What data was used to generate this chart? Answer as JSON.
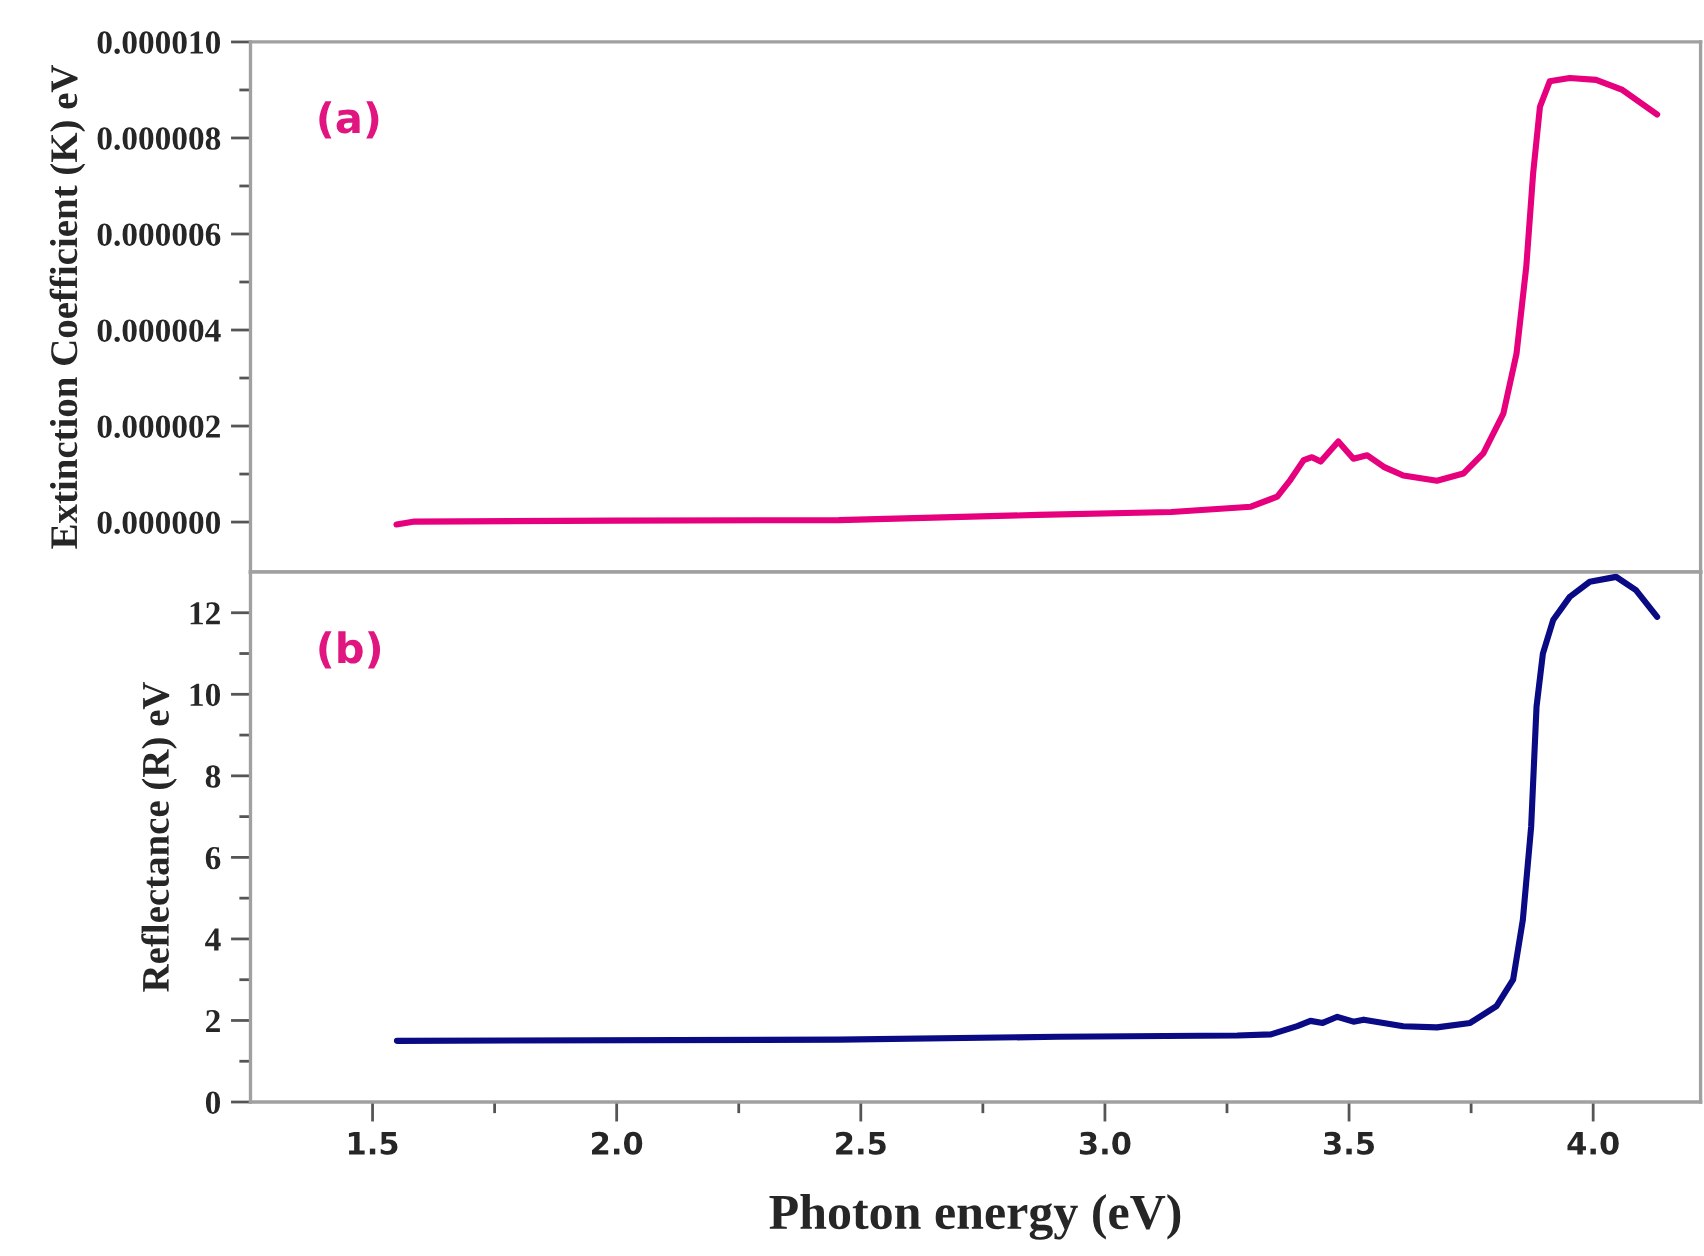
{
  "chart_data": [
    {
      "type": "line",
      "ylabel": "Extinction Coefficient (K) eV",
      "annotations": [
        "(a)"
      ],
      "xlim": [
        1.25,
        4.22
      ],
      "xticks": [
        1.5,
        {
          "value": 1.75,
          "label": null
        },
        2,
        {
          "value": 2.25,
          "label": null
        },
        2.5,
        {
          "value": 2.75,
          "label": null
        },
        3,
        {
          "value": 3.25,
          "label": null
        },
        3.5,
        {
          "value": 3.75,
          "label": null
        },
        4
      ],
      "ylim": [
        -1.04e-06,
        1e-05
      ],
      "yticks": [
        {
          "value": 0,
          "label": "0.000000"
        },
        {
          "value": 1e-06,
          "label": null
        },
        {
          "value": 2e-06,
          "label": "0.000002"
        },
        {
          "value": 3e-06,
          "label": null
        },
        {
          "value": 4e-06,
          "label": "0.000004"
        },
        {
          "value": 5e-06,
          "label": null
        },
        {
          "value": 6e-06,
          "label": "0.000006"
        },
        {
          "value": 7e-06,
          "label": null
        },
        {
          "value": 8e-06,
          "label": "0.000008"
        },
        {
          "value": 9e-06,
          "label": null
        },
        {
          "value": 1e-05,
          "label": "0.000010"
        }
      ],
      "tick_labels": "y",
      "grid": false,
      "legend": false,
      "marker": "none",
      "line_style": "solid",
      "series": [
        {
          "color": "#e6007e",
          "x": [
            1.549,
            1.586,
            2.0,
            2.455,
            2.863,
            3.136,
            3.299,
            3.353,
            3.38,
            3.407,
            3.424,
            3.442,
            3.478,
            3.509,
            3.537,
            3.571,
            3.611,
            3.68,
            3.734,
            3.775,
            3.816,
            3.843,
            3.863,
            3.877,
            3.891,
            3.911,
            3.952,
            4.006,
            4.06,
            4.131
          ],
          "values": [
            -5e-08,
            1e-08,
            3e-08,
            4e-08,
            1.5e-07,
            2.1e-07,
            3.2e-07,
            5.3e-07,
            8.8e-07,
            1.29e-06,
            1.35e-06,
            1.26e-06,
            1.68e-06,
            1.32e-06,
            1.39e-06,
            1.15e-06,
            9.7e-07,
            8.6e-07,
            1.01e-06,
            1.43e-06,
            2.26e-06,
            3.51e-06,
            5.32e-06,
            7.26e-06,
            8.65e-06,
            9.18e-06,
            9.25e-06,
            9.21e-06,
            9e-06,
            8.49e-06
          ]
        }
      ]
    },
    {
      "type": "line",
      "xlabel": "Photon energy (eV)",
      "ylabel": "Reflectance (R) eV",
      "annotations": [
        "(b)"
      ],
      "xlim": [
        1.25,
        4.22
      ],
      "xticks": [
        1.5,
        {
          "value": 1.75,
          "label": null
        },
        {
          "value": 2,
          "label": "2.0"
        },
        {
          "value": 2.25,
          "label": null
        },
        2.5,
        {
          "value": 2.75,
          "label": null
        },
        {
          "value": 3,
          "label": "3.0"
        },
        {
          "value": 3.25,
          "label": null
        },
        3.5,
        {
          "value": 3.75,
          "label": null
        },
        {
          "value": 4,
          "label": "4.0"
        }
      ],
      "ylim": [
        0,
        13
      ],
      "yticks": [
        0,
        {
          "value": 1,
          "label": null
        },
        2,
        {
          "value": 3,
          "label": null
        },
        4,
        {
          "value": 5,
          "label": null
        },
        6,
        {
          "value": 7,
          "label": null
        },
        8,
        {
          "value": 9,
          "label": null
        },
        10,
        {
          "value": 11,
          "label": null
        },
        12
      ],
      "grid": false,
      "legend": false,
      "marker": "none",
      "line_style": "solid",
      "series": [
        {
          "color": "#0a0a84",
          "x": [
            1.55,
            2.455,
            2.904,
            3.271,
            3.34,
            3.394,
            3.421,
            3.446,
            3.476,
            3.509,
            3.53,
            3.611,
            3.68,
            3.748,
            3.802,
            3.836,
            3.856,
            3.873,
            3.884,
            3.897,
            3.918,
            3.952,
            3.993,
            4.047,
            4.088,
            4.131
          ],
          "values": [
            1.5,
            1.53,
            1.6,
            1.63,
            1.66,
            1.86,
            1.99,
            1.94,
            2.09,
            1.97,
            2.02,
            1.86,
            1.83,
            1.94,
            2.35,
            3.0,
            4.47,
            6.76,
            9.7,
            11.0,
            11.82,
            12.39,
            12.76,
            12.88,
            12.55,
            11.9
          ]
        }
      ]
    }
  ]
}
